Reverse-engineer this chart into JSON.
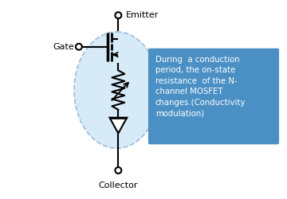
{
  "background_color": "#ffffff",
  "emitter_label": "Emitter",
  "gate_label": "Gate",
  "collector_label": "Collector",
  "annotation_text": "During  a conduction\nperiod, the on-state\nresistance  of the N-\nchannel MOSFET\nchanges.(Conductivity\nmodulation)",
  "annotation_bg": "#4a90c4",
  "annotation_text_color": "#ffffff",
  "circle_fill": "#d6eaf8",
  "circle_edge": "#a0bcd8",
  "line_color": "#000000"
}
